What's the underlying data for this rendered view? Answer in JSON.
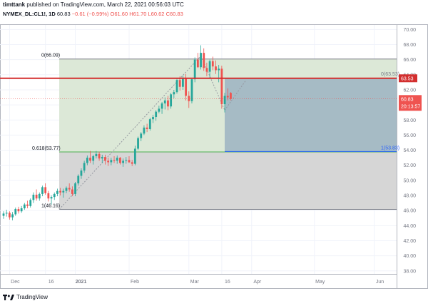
{
  "header": {
    "author": "timttank",
    "published_text": "published on TradingView.com, March 22, 2021 00:56:03 UTC",
    "symbol": "NYMEX_DL:CL1!, 1D",
    "last": "60.83",
    "change": "−0.61 (−0.99%)",
    "open": "O61.60",
    "high": "H61.70",
    "low": "L60.62",
    "close": "C60.83"
  },
  "footer": {
    "brand": "TradingView"
  },
  "price_tags": {
    "level": "63.53",
    "last": "60.83",
    "countdown": "20:13:57"
  },
  "fib_labels": {
    "top": "0(66.09)",
    "mid": "0.618(53.77)",
    "bot": "1(46.16)",
    "proj_top": "0(63.53)",
    "proj_bot": "1(53.83)"
  },
  "colors": {
    "up": "#26a69a",
    "down": "#ef5350",
    "resistance": "#d32f2f",
    "fib_green_zone": "#dce8d7",
    "fib_grey_zone": "#d6d6d6",
    "projection_zone": "#9cb3c2"
  },
  "chart_data": {
    "type": "candlestick",
    "symbol": "NYMEX_DL:CL1!",
    "interval": "1D",
    "x_ticks": [
      "Dec",
      "16",
      "2021",
      "Feb",
      "Mar",
      "16",
      "Apr",
      "May",
      "Jun"
    ],
    "y_ticks": [
      38,
      40,
      42,
      44,
      46,
      48,
      50,
      52,
      54,
      56,
      58,
      60,
      62,
      64,
      66,
      68,
      70
    ],
    "ylim": [
      37.6,
      70.6
    ],
    "resistance_level": 63.53,
    "last_price": 60.83,
    "fib_retracement": {
      "levels": [
        {
          "ratio": 0,
          "price": 66.09
        },
        {
          "ratio": 0.618,
          "price": 53.77
        },
        {
          "ratio": 1,
          "price": 46.16
        }
      ]
    },
    "fib_projection": {
      "levels": [
        {
          "ratio": 0,
          "price": 63.53
        },
        {
          "ratio": 1,
          "price": 53.83
        }
      ]
    },
    "candles": [
      [
        45.3,
        45.9,
        44.9,
        45.6
      ],
      [
        45.6,
        46.1,
        45.2,
        45.7
      ],
      [
        45.7,
        45.9,
        44.8,
        45.1
      ],
      [
        45.1,
        45.8,
        44.7,
        45.5
      ],
      [
        45.5,
        46.4,
        45.3,
        46.2
      ],
      [
        46.2,
        46.5,
        45.6,
        45.9
      ],
      [
        45.9,
        46.6,
        45.7,
        46.3
      ],
      [
        46.3,
        47.0,
        46.1,
        46.8
      ],
      [
        46.8,
        47.3,
        46.3,
        46.6
      ],
      [
        46.6,
        47.6,
        46.4,
        47.4
      ],
      [
        47.4,
        48.4,
        47.0,
        48.1
      ],
      [
        48.1,
        48.8,
        47.3,
        47.6
      ],
      [
        47.6,
        48.4,
        47.3,
        48.2
      ],
      [
        48.2,
        49.3,
        47.9,
        49.1
      ],
      [
        49.1,
        49.6,
        48.1,
        48.3
      ],
      [
        48.3,
        48.6,
        47.2,
        47.6
      ],
      [
        47.6,
        48.0,
        46.8,
        47.8
      ],
      [
        47.8,
        48.4,
        47.4,
        48.2
      ],
      [
        48.2,
        48.9,
        47.9,
        48.6
      ],
      [
        48.6,
        49.0,
        48.0,
        48.4
      ],
      [
        48.4,
        48.9,
        47.7,
        48.6
      ],
      [
        48.6,
        49.2,
        48.3,
        49.0
      ],
      [
        49.0,
        49.6,
        48.5,
        48.8
      ],
      [
        48.8,
        49.2,
        47.9,
        48.2
      ],
      [
        48.2,
        49.8,
        47.9,
        49.6
      ],
      [
        49.6,
        50.8,
        49.3,
        50.6
      ],
      [
        50.6,
        51.6,
        50.2,
        51.3
      ],
      [
        51.3,
        52.6,
        51.0,
        52.3
      ],
      [
        52.3,
        53.3,
        52.0,
        53.0
      ],
      [
        53.0,
        53.9,
        52.3,
        52.6
      ],
      [
        52.6,
        53.4,
        52.1,
        53.2
      ],
      [
        53.2,
        53.9,
        52.9,
        53.5
      ],
      [
        53.5,
        53.8,
        52.6,
        52.9
      ],
      [
        52.9,
        53.4,
        52.3,
        53.1
      ],
      [
        53.1,
        53.4,
        52.1,
        52.6
      ],
      [
        52.6,
        53.0,
        51.9,
        52.4
      ],
      [
        52.4,
        53.0,
        52.0,
        52.7
      ],
      [
        52.7,
        53.2,
        52.3,
        52.6
      ],
      [
        52.6,
        53.3,
        52.2,
        53.0
      ],
      [
        53.0,
        53.1,
        52.1,
        52.3
      ],
      [
        52.3,
        52.9,
        51.8,
        52.6
      ],
      [
        52.6,
        53.1,
        52.2,
        52.7
      ],
      [
        52.7,
        53.2,
        52.3,
        52.4
      ],
      [
        52.4,
        52.7,
        51.9,
        52.2
      ],
      [
        52.2,
        54.6,
        52.0,
        54.2
      ],
      [
        54.2,
        55.8,
        54.0,
        55.6
      ],
      [
        55.6,
        56.4,
        55.2,
        56.2
      ],
      [
        56.2,
        57.3,
        56.0,
        57.0
      ],
      [
        57.0,
        57.5,
        56.4,
        56.8
      ],
      [
        56.8,
        58.3,
        56.6,
        58.1
      ],
      [
        58.1,
        58.7,
        57.6,
        58.4
      ],
      [
        58.4,
        59.3,
        57.9,
        59.1
      ],
      [
        59.1,
        59.9,
        58.9,
        59.5
      ],
      [
        59.5,
        60.4,
        58.8,
        60.2
      ],
      [
        60.2,
        61.0,
        59.4,
        60.6
      ],
      [
        60.6,
        61.2,
        59.3,
        59.8
      ],
      [
        59.8,
        61.6,
        59.5,
        61.4
      ],
      [
        61.4,
        62.0,
        60.9,
        61.7
      ],
      [
        61.7,
        63.5,
        61.5,
        63.3
      ],
      [
        63.3,
        63.8,
        61.9,
        62.4
      ],
      [
        62.4,
        63.9,
        62.0,
        63.6
      ],
      [
        63.6,
        64.1,
        60.6,
        61.2
      ],
      [
        61.2,
        61.8,
        59.6,
        60.5
      ],
      [
        60.5,
        63.6,
        60.2,
        63.4
      ],
      [
        63.4,
        66.3,
        63.0,
        66.0
      ],
      [
        66.0,
        66.9,
        64.9,
        65.0
      ],
      [
        65.0,
        67.9,
        64.7,
        66.9
      ],
      [
        66.9,
        67.5,
        64.5,
        64.9
      ],
      [
        64.9,
        65.6,
        63.8,
        64.4
      ],
      [
        64.4,
        66.0,
        63.6,
        65.8
      ],
      [
        65.8,
        66.4,
        64.6,
        65.1
      ],
      [
        65.1,
        65.9,
        64.1,
        64.6
      ],
      [
        64.6,
        65.3,
        63.0,
        64.8
      ],
      [
        64.8,
        65.2,
        59.5,
        60.1
      ],
      [
        60.1,
        61.6,
        59.0,
        61.2
      ],
      [
        61.2,
        62.2,
        60.6,
        61.0
      ],
      [
        61.6,
        61.7,
        60.6,
        60.8
      ]
    ]
  }
}
